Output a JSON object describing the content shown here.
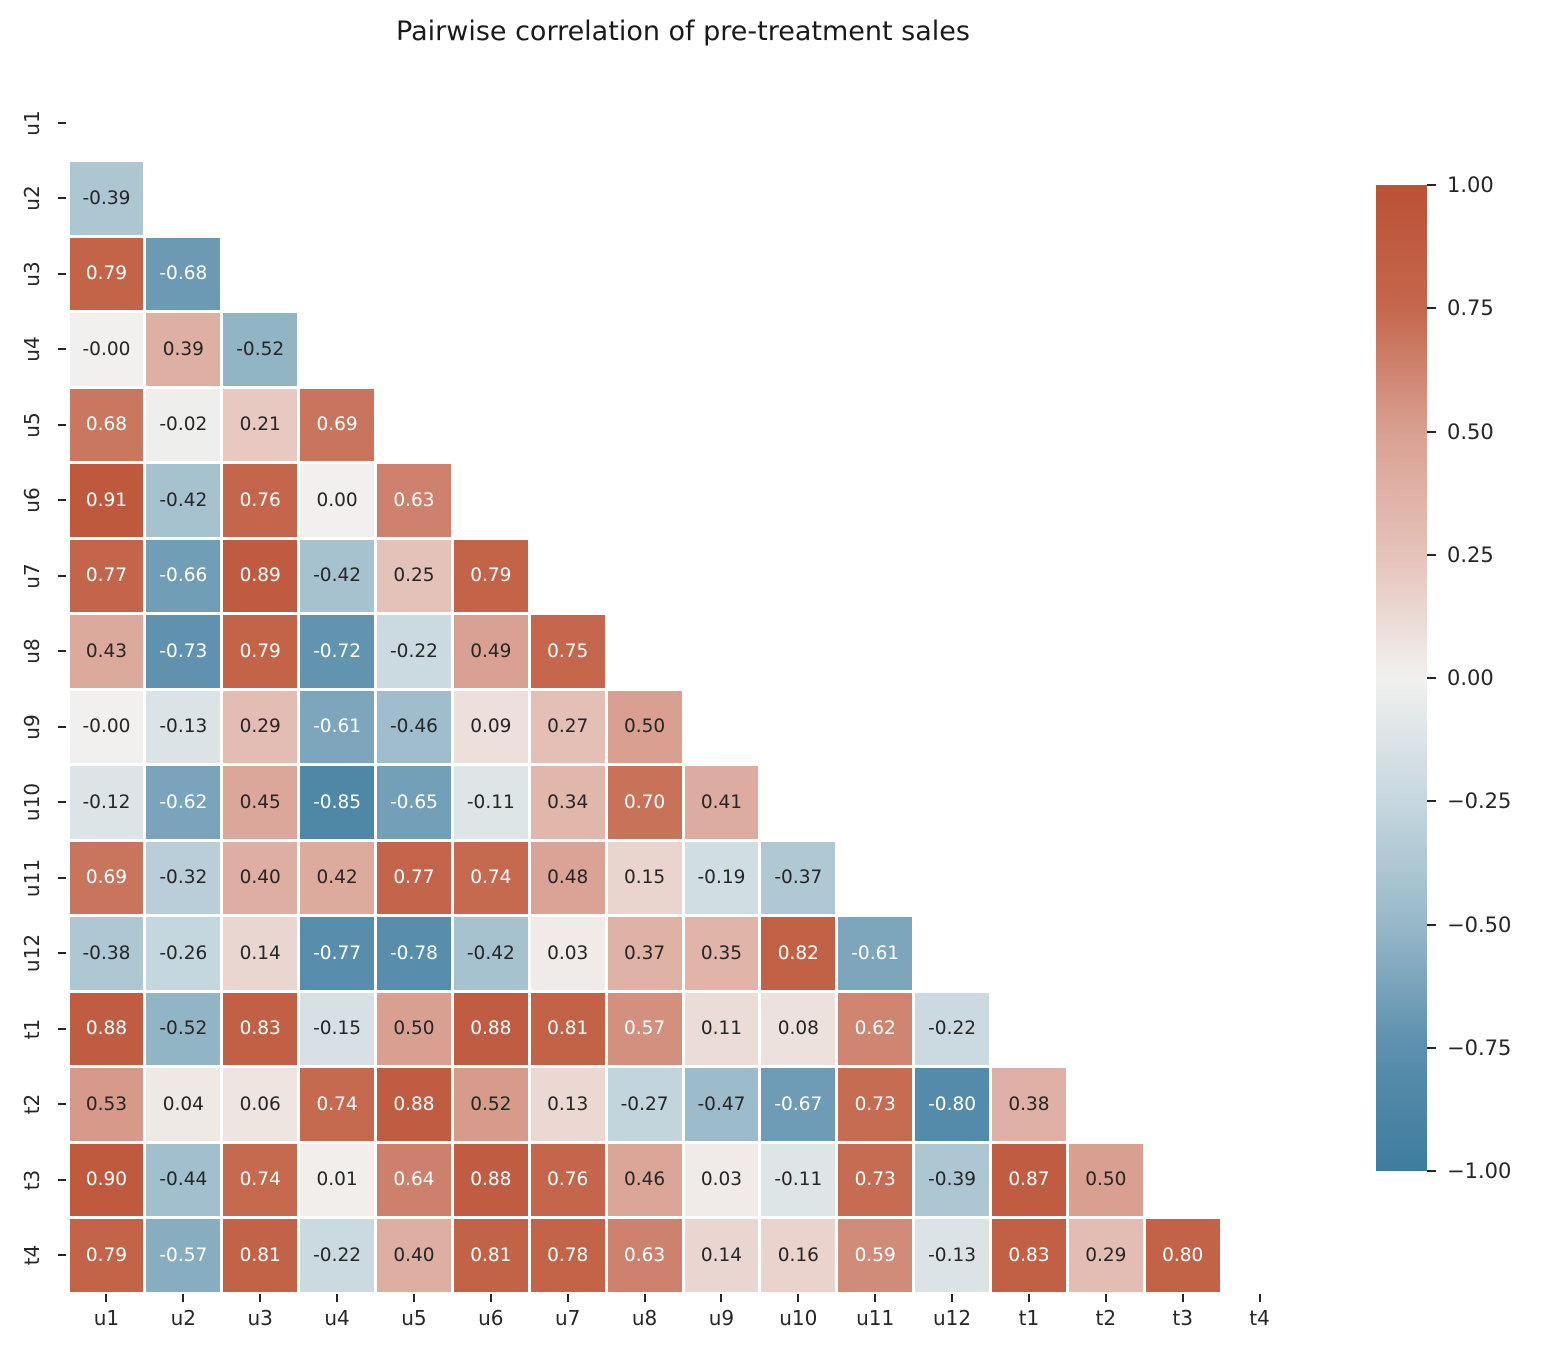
{
  "title": "Pairwise correlation of pre-treatment sales",
  "chart_data": {
    "type": "heatmap",
    "subtype": "lower-triangle-correlation-matrix",
    "title": "Pairwise correlation of pre-treatment sales",
    "x_tick_labels": [
      "u1",
      "u2",
      "u3",
      "u4",
      "u5",
      "u6",
      "u7",
      "u8",
      "u9",
      "u10",
      "u11",
      "u12",
      "t1",
      "t2",
      "t3",
      "t4"
    ],
    "y_tick_labels": [
      "u1",
      "u2",
      "u3",
      "u4",
      "u5",
      "u6",
      "u7",
      "u8",
      "u9",
      "u10",
      "u11",
      "u12",
      "t1",
      "t2",
      "t3",
      "t4"
    ],
    "value_range": [
      -1,
      1
    ],
    "grid_line_color": "#ffffff",
    "rows": [
      {
        "label": "u1",
        "values": []
      },
      {
        "label": "u2",
        "values": [
          "-0.39"
        ]
      },
      {
        "label": "u3",
        "values": [
          "0.79",
          "-0.68"
        ]
      },
      {
        "label": "u4",
        "values": [
          "-0.00",
          "0.39",
          "-0.52"
        ]
      },
      {
        "label": "u5",
        "values": [
          "0.68",
          "-0.02",
          "0.21",
          "0.69"
        ]
      },
      {
        "label": "u6",
        "values": [
          "0.91",
          "-0.42",
          "0.76",
          "0.00",
          "0.63"
        ]
      },
      {
        "label": "u7",
        "values": [
          "0.77",
          "-0.66",
          "0.89",
          "-0.42",
          "0.25",
          "0.79"
        ]
      },
      {
        "label": "u8",
        "values": [
          "0.43",
          "-0.73",
          "0.79",
          "-0.72",
          "-0.22",
          "0.49",
          "0.75"
        ]
      },
      {
        "label": "u9",
        "values": [
          "-0.00",
          "-0.13",
          "0.29",
          "-0.61",
          "-0.46",
          "0.09",
          "0.27",
          "0.50"
        ]
      },
      {
        "label": "u10",
        "values": [
          "-0.12",
          "-0.62",
          "0.45",
          "-0.85",
          "-0.65",
          "-0.11",
          "0.34",
          "0.70",
          "0.41"
        ]
      },
      {
        "label": "u11",
        "values": [
          "0.69",
          "-0.32",
          "0.40",
          "0.42",
          "0.77",
          "0.74",
          "0.48",
          "0.15",
          "-0.19",
          "-0.37"
        ]
      },
      {
        "label": "u12",
        "values": [
          "-0.38",
          "-0.26",
          "0.14",
          "-0.77",
          "-0.78",
          "-0.42",
          "0.03",
          "0.37",
          "0.35",
          "0.82",
          "-0.61"
        ]
      },
      {
        "label": "t1",
        "values": [
          "0.88",
          "-0.52",
          "0.83",
          "-0.15",
          "0.50",
          "0.88",
          "0.81",
          "0.57",
          "0.11",
          "0.08",
          "0.62",
          "-0.22"
        ]
      },
      {
        "label": "t2",
        "values": [
          "0.53",
          "0.04",
          "0.06",
          "0.74",
          "0.88",
          "0.52",
          "0.13",
          "-0.27",
          "-0.47",
          "-0.67",
          "0.73",
          "-0.80",
          "0.38"
        ]
      },
      {
        "label": "t3",
        "values": [
          "0.90",
          "-0.44",
          "0.74",
          "0.01",
          "0.64",
          "0.88",
          "0.76",
          "0.46",
          "0.03",
          "-0.11",
          "0.73",
          "-0.39",
          "0.87",
          "0.50"
        ]
      },
      {
        "label": "t4",
        "values": [
          "0.79",
          "-0.57",
          "0.81",
          "-0.22",
          "0.40",
          "0.81",
          "0.78",
          "0.63",
          "0.14",
          "0.16",
          "0.59",
          "-0.13",
          "0.83",
          "0.29",
          "0.80"
        ]
      }
    ],
    "colormap_stops": [
      {
        "v": 1.0,
        "color": "#bb5136"
      },
      {
        "v": 0.75,
        "color": "#c4674c"
      },
      {
        "v": 0.5,
        "color": "#d9a092"
      },
      {
        "v": 0.25,
        "color": "#e5c2b9"
      },
      {
        "v": 0.0,
        "color": "#f1f0ee"
      },
      {
        "v": -0.25,
        "color": "#c6d7df"
      },
      {
        "v": -0.5,
        "color": "#97b8c8"
      },
      {
        "v": -0.75,
        "color": "#5b8fad"
      },
      {
        "v": -1.0,
        "color": "#3e7c9e"
      }
    ],
    "annotation_colors": {
      "dark": "#262626",
      "light": "#ffffff"
    },
    "light_text_abs_threshold": 0.55,
    "colorbar": {
      "position": "right",
      "tick_labels": [
        "1.00",
        "0.75",
        "0.50",
        "0.25",
        "0.00",
        "−0.25",
        "−0.50",
        "−0.75",
        "−1.00"
      ]
    }
  }
}
